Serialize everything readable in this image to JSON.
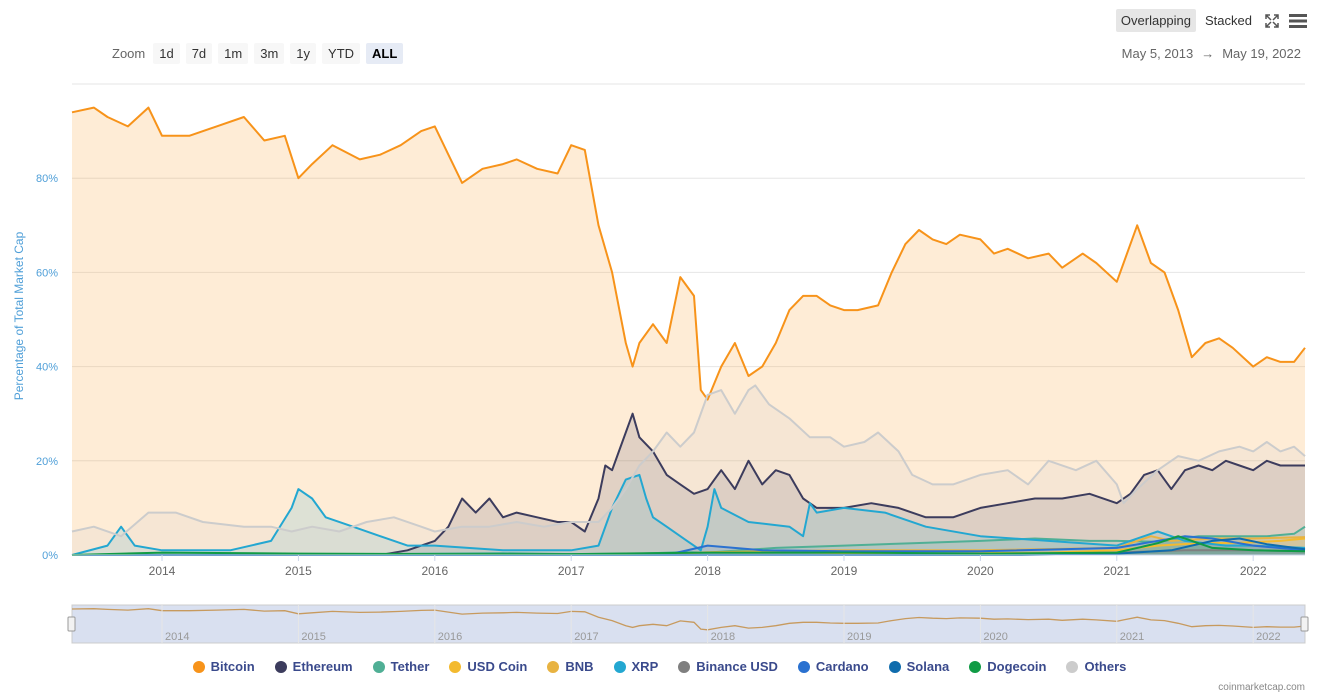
{
  "toolbar": {
    "zoom_label": "Zoom",
    "zoom_buttons": [
      "1d",
      "7d",
      "1m",
      "3m",
      "1y",
      "YTD",
      "ALL"
    ],
    "active_zoom": "ALL",
    "modes": [
      "Overlapping",
      "Stacked"
    ],
    "active_mode": "Overlapping",
    "fullscreen_icon": "fullscreen-icon",
    "menu_icon": "hamburger-menu-icon"
  },
  "date_range": {
    "from": "May 5, 2013",
    "arrow": "→",
    "to": "May 19, 2022"
  },
  "credit": "coinmarketcap.com",
  "chart_data": {
    "type": "area",
    "ylabel": "Percentage of Total Market Cap",
    "ylim": [
      0,
      100
    ],
    "yticks": [
      "0%",
      "20%",
      "40%",
      "60%",
      "80%"
    ],
    "xlim": [
      2013.34,
      2022.38
    ],
    "xticks": [
      "2014",
      "2015",
      "2016",
      "2017",
      "2018",
      "2019",
      "2020",
      "2021",
      "2022"
    ],
    "grid": true,
    "legend_position": "bottom",
    "series": [
      {
        "name": "Bitcoin",
        "color": "#f7931a",
        "x": [
          2013.34,
          2013.5,
          2013.6,
          2013.75,
          2013.9,
          2014.0,
          2014.2,
          2014.4,
          2014.6,
          2014.75,
          2014.9,
          2015.0,
          2015.1,
          2015.25,
          2015.45,
          2015.6,
          2015.75,
          2015.9,
          2016.0,
          2016.1,
          2016.2,
          2016.35,
          2016.5,
          2016.6,
          2016.75,
          2016.9,
          2017.0,
          2017.1,
          2017.2,
          2017.3,
          2017.4,
          2017.45,
          2017.5,
          2017.6,
          2017.7,
          2017.8,
          2017.9,
          2017.95,
          2018.0,
          2018.1,
          2018.2,
          2018.3,
          2018.4,
          2018.5,
          2018.6,
          2018.7,
          2018.8,
          2018.9,
          2019.0,
          2019.1,
          2019.25,
          2019.35,
          2019.45,
          2019.55,
          2019.65,
          2019.75,
          2019.85,
          2020.0,
          2020.1,
          2020.2,
          2020.35,
          2020.5,
          2020.6,
          2020.75,
          2020.85,
          2021.0,
          2021.05,
          2021.15,
          2021.25,
          2021.35,
          2021.45,
          2021.55,
          2021.65,
          2021.75,
          2021.85,
          2022.0,
          2022.1,
          2022.2,
          2022.3,
          2022.38
        ],
        "values": [
          94,
          95,
          93,
          91,
          95,
          89,
          89,
          91,
          93,
          88,
          89,
          80,
          83,
          87,
          84,
          85,
          87,
          90,
          91,
          85,
          79,
          82,
          83,
          84,
          82,
          81,
          87,
          86,
          70,
          60,
          45,
          40,
          45,
          49,
          45,
          59,
          55,
          35,
          33,
          40,
          45,
          38,
          40,
          45,
          52,
          55,
          55,
          53,
          52,
          52,
          53,
          60,
          66,
          69,
          67,
          66,
          68,
          67,
          64,
          65,
          63,
          64,
          61,
          64,
          62,
          58,
          62,
          70,
          62,
          60,
          52,
          42,
          45,
          46,
          44,
          40,
          42,
          41,
          41,
          44
        ]
      },
      {
        "name": "Ethereum",
        "color": "#3c3c5d",
        "x": [
          2015.6,
          2015.8,
          2016.0,
          2016.1,
          2016.2,
          2016.3,
          2016.4,
          2016.5,
          2016.6,
          2016.75,
          2016.9,
          2017.0,
          2017.1,
          2017.2,
          2017.25,
          2017.3,
          2017.35,
          2017.45,
          2017.5,
          2017.6,
          2017.7,
          2017.8,
          2017.9,
          2018.0,
          2018.05,
          2018.1,
          2018.2,
          2018.3,
          2018.4,
          2018.5,
          2018.6,
          2018.7,
          2018.8,
          2018.9,
          2019.0,
          2019.2,
          2019.4,
          2019.6,
          2019.8,
          2020.0,
          2020.2,
          2020.4,
          2020.6,
          2020.8,
          2021.0,
          2021.1,
          2021.2,
          2021.3,
          2021.4,
          2021.5,
          2021.6,
          2021.7,
          2021.8,
          2021.9,
          2022.0,
          2022.1,
          2022.2,
          2022.3,
          2022.38
        ],
        "values": [
          0,
          1,
          3,
          6,
          12,
          9,
          12,
          8,
          9,
          8,
          7,
          7,
          5,
          12,
          19,
          18,
          22,
          30,
          25,
          22,
          17,
          15,
          13,
          14,
          16,
          18,
          14,
          20,
          15,
          18,
          17,
          12,
          10,
          10,
          10,
          11,
          10,
          8,
          8,
          10,
          11,
          12,
          12,
          13,
          11,
          13,
          17,
          18,
          14,
          18,
          19,
          18,
          20,
          19,
          18,
          20,
          19,
          19,
          19
        ]
      },
      {
        "name": "Tether",
        "color": "#50af95",
        "x": [
          2013.34,
          2014.8,
          2015.0,
          2015.5,
          2016.0,
          2016.5,
          2017.0,
          2017.5,
          2017.8,
          2018.0,
          2018.5,
          2019.0,
          2019.5,
          2020.0,
          2020.4,
          2020.8,
          2021.0,
          2021.3,
          2021.6,
          2021.9,
          2022.1,
          2022.3,
          2022.38
        ],
        "values": [
          0,
          0,
          0.1,
          0.2,
          0.3,
          0.4,
          0.2,
          0.3,
          0.6,
          0.5,
          1.5,
          2,
          2.5,
          3,
          3.5,
          3,
          3,
          2.8,
          4,
          4,
          4,
          4.5,
          6
        ]
      },
      {
        "name": "USD Coin",
        "color": "#f3ba2f",
        "x": [
          2013.34,
          2018.7,
          2019.5,
          2020.5,
          2021.0,
          2021.3,
          2021.6,
          2021.9,
          2022.2,
          2022.38
        ],
        "values": [
          0,
          0,
          0.3,
          0.5,
          1,
          2,
          2.5,
          2.6,
          3,
          3.5
        ]
      },
      {
        "name": "BNB",
        "color": "#e8b342",
        "x": [
          2013.34,
          2017.6,
          2018.0,
          2019.0,
          2020.0,
          2021.0,
          2021.25,
          2021.4,
          2021.7,
          2022.0,
          2022.38
        ],
        "values": [
          0,
          0,
          0.6,
          1,
          1,
          1.5,
          4,
          3,
          3.5,
          3.5,
          3.8
        ]
      },
      {
        "name": "XRP",
        "color": "#23a7d1",
        "x": [
          2013.34,
          2013.6,
          2013.7,
          2013.8,
          2014.0,
          2014.5,
          2014.8,
          2014.95,
          2015.0,
          2015.1,
          2015.2,
          2015.4,
          2015.6,
          2015.8,
          2016.0,
          2016.5,
          2017.0,
          2017.2,
          2017.3,
          2017.4,
          2017.5,
          2017.55,
          2017.6,
          2017.7,
          2017.85,
          2017.95,
          2018.0,
          2018.05,
          2018.1,
          2018.3,
          2018.6,
          2018.7,
          2018.75,
          2018.8,
          2019.0,
          2019.3,
          2019.6,
          2020.0,
          2020.5,
          2021.0,
          2021.3,
          2021.5,
          2021.8,
          2022.0,
          2022.38
        ],
        "values": [
          0,
          2,
          6,
          2,
          1,
          1,
          3,
          10,
          14,
          12,
          8,
          6,
          4,
          2,
          2,
          1,
          1,
          2,
          10,
          16,
          17,
          12,
          8,
          6,
          3,
          1,
          6,
          14,
          10,
          7,
          6,
          4,
          11,
          9,
          10,
          9,
          6,
          4,
          3,
          2,
          5,
          3,
          2,
          2,
          1.5
        ]
      },
      {
        "name": "Binance USD",
        "color": "#7f7f7f",
        "x": [
          2013.34,
          2019.7,
          2020.5,
          2021.0,
          2021.5,
          2022.0,
          2022.38
        ],
        "values": [
          0,
          0,
          0.3,
          0.5,
          1,
          1,
          0.8
        ]
      },
      {
        "name": "Cardano",
        "color": "#2a71d0",
        "x": [
          2013.34,
          2017.7,
          2018.0,
          2018.4,
          2019.0,
          2020.0,
          2021.0,
          2021.2,
          2021.5,
          2021.7,
          2022.0,
          2022.38
        ],
        "values": [
          0,
          0,
          2,
          1,
          0.8,
          0.8,
          1.5,
          2.5,
          4,
          3.5,
          2,
          1
        ]
      },
      {
        "name": "Solana",
        "color": "#0f6cad",
        "x": [
          2013.34,
          2020.3,
          2021.0,
          2021.4,
          2021.7,
          2021.9,
          2022.1,
          2022.38
        ],
        "values": [
          0,
          0,
          0.3,
          1,
          3,
          3.5,
          2.3,
          1.2
        ]
      },
      {
        "name": "Dogecoin",
        "color": "#109b45",
        "x": [
          2013.34,
          2014.0,
          2015.0,
          2016.0,
          2017.0,
          2018.0,
          2019.0,
          2020.0,
          2021.0,
          2021.3,
          2021.45,
          2021.7,
          2022.0,
          2022.38
        ],
        "values": [
          0,
          0.5,
          0.3,
          0.2,
          0.2,
          0.5,
          0.5,
          0.3,
          0.5,
          2.5,
          4,
          1.5,
          1,
          0.8
        ]
      },
      {
        "name": "Others",
        "color": "#cccccc",
        "x": [
          2013.34,
          2013.5,
          2013.7,
          2013.9,
          2014.1,
          2014.3,
          2014.6,
          2014.8,
          2014.95,
          2015.1,
          2015.3,
          2015.5,
          2015.7,
          2015.9,
          2016.0,
          2016.2,
          2016.4,
          2016.6,
          2016.8,
          2017.0,
          2017.2,
          2017.3,
          2017.4,
          2017.5,
          2017.6,
          2017.7,
          2017.8,
          2017.9,
          2018.0,
          2018.1,
          2018.2,
          2018.3,
          2018.35,
          2018.45,
          2018.6,
          2018.75,
          2018.9,
          2019.0,
          2019.15,
          2019.25,
          2019.4,
          2019.5,
          2019.65,
          2019.8,
          2020.0,
          2020.2,
          2020.35,
          2020.5,
          2020.7,
          2020.85,
          2021.0,
          2021.05,
          2021.15,
          2021.3,
          2021.45,
          2021.6,
          2021.75,
          2021.9,
          2022.0,
          2022.1,
          2022.2,
          2022.3,
          2022.38
        ],
        "values": [
          5,
          6,
          4,
          9,
          9,
          7,
          6,
          6,
          5,
          6,
          5,
          7,
          8,
          6,
          5,
          6,
          6,
          7,
          6,
          7,
          7,
          10,
          14,
          19,
          22,
          26,
          23,
          26,
          34,
          35,
          30,
          35,
          36,
          32,
          29,
          25,
          25,
          23,
          24,
          26,
          22,
          17,
          15,
          15,
          17,
          18,
          15,
          20,
          18,
          20,
          15,
          11,
          14,
          18,
          21,
          20,
          22,
          23,
          22,
          24,
          22,
          23,
          21
        ]
      }
    ]
  },
  "navigator": {
    "xticks": [
      "2014",
      "2015",
      "2016",
      "2017",
      "2018",
      "2019",
      "2020",
      "2021",
      "2022"
    ]
  }
}
